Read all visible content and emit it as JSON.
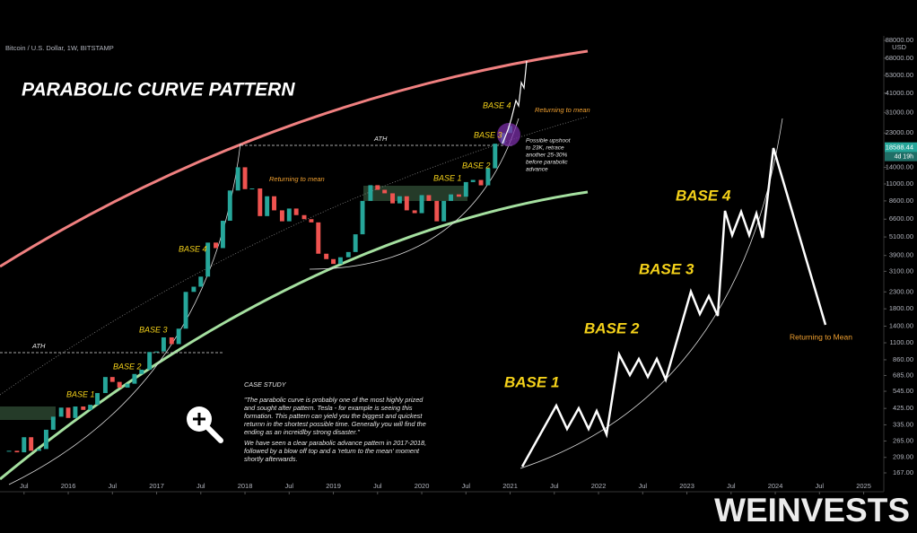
{
  "chart_data": {
    "type": "candlestick",
    "title": "PARABOLIC CURVE PATTERN",
    "subtitle": "Bitcoin / U.S. Dollar, 1W, BITSTAMP",
    "log_scale": true,
    "up_color": "#26a69a",
    "down_color": "#ef5350",
    "x": [
      2015.33,
      2015.42,
      2015.5,
      2015.58,
      2015.67,
      2015.75,
      2015.83,
      2015.92,
      2016.0,
      2016.08,
      2016.17,
      2016.25,
      2016.33,
      2016.42,
      2016.5,
      2016.58,
      2016.67,
      2016.75,
      2016.83,
      2016.92,
      2017.0,
      2017.08,
      2017.17,
      2017.25,
      2017.33,
      2017.42,
      2017.5,
      2017.58,
      2017.67,
      2017.75,
      2017.83,
      2017.92,
      2018.0,
      2018.08,
      2018.17,
      2018.25,
      2018.33,
      2018.42,
      2018.5,
      2018.58,
      2018.67,
      2018.75,
      2018.83,
      2018.92,
      2019.0,
      2019.08,
      2019.17,
      2019.25,
      2019.33,
      2019.42,
      2019.5,
      2019.58,
      2019.67,
      2019.75,
      2019.83,
      2019.92,
      2020.0,
      2020.08,
      2020.17,
      2020.25,
      2020.33,
      2020.42,
      2020.5,
      2020.58,
      2020.67,
      2020.75,
      2020.83,
      2020.92,
      2021.0
    ],
    "values": [
      230,
      225,
      280,
      230,
      236,
      312,
      377,
      430,
      370,
      437,
      416,
      448,
      531,
      670,
      624,
      575,
      608,
      700,
      745,
      963,
      970,
      1190,
      1080,
      1350,
      2300,
      2480,
      2870,
      4700,
      4340,
      6450,
      10000,
      14000,
      10200,
      10300,
      6900,
      9200,
      7500,
      6400,
      7700,
      7000,
      6600,
      6300,
      4000,
      3700,
      3450,
      3800,
      4100,
      5300,
      8600,
      10800,
      10100,
      9600,
      8300,
      9200,
      7500,
      7200,
      9350,
      8600,
      6400,
      8600,
      9450,
      9140,
      11300,
      11650,
      10780,
      13800,
      19700,
      23000,
      25500
    ],
    "xlim": [
      2015.228,
      2025.228
    ],
    "xticks": [
      {
        "value": 2015.5,
        "label": "Jul"
      },
      2016,
      {
        "value": 2016.5,
        "label": "Jul"
      },
      2017,
      {
        "value": 2017.5,
        "label": "Jul"
      },
      2018,
      {
        "value": 2018.5,
        "label": "Jul"
      },
      2019,
      {
        "value": 2019.5,
        "label": "Jul"
      },
      2020,
      {
        "value": 2020.5,
        "label": "Jul"
      },
      2021,
      {
        "value": 2021.5,
        "label": "Jul"
      },
      2022,
      {
        "value": 2022.5,
        "label": "Jul"
      },
      2023,
      {
        "value": 2023.5,
        "label": "Jul"
      },
      2024,
      {
        "value": 2024.5,
        "label": "Jul"
      },
      2025
    ],
    "ylim": [
      141,
      94000
    ],
    "yticks": [
      {
        "value": 167,
        "label": "167.00"
      },
      {
        "value": 209,
        "label": "209.00"
      },
      {
        "value": 265,
        "label": "265.00"
      },
      {
        "value": 335,
        "label": "335.00"
      },
      {
        "value": 425,
        "label": "425.00"
      },
      {
        "value": 545,
        "label": "545.00"
      },
      {
        "value": 685,
        "label": "685.00"
      },
      {
        "value": 860,
        "label": "860.00"
      },
      {
        "value": 1100,
        "label": "1100.00"
      },
      {
        "value": 1400,
        "label": "1400.00"
      },
      {
        "value": 1800,
        "label": "1800.00"
      },
      {
        "value": 2300,
        "label": "2300.00"
      },
      {
        "value": 3100,
        "label": "3100.00"
      },
      {
        "value": 3900,
        "label": "3900.00"
      },
      {
        "value": 5100,
        "label": "5100.00"
      },
      {
        "value": 6600,
        "label": "6600.00"
      },
      {
        "value": 8600,
        "label": "8600.00"
      },
      {
        "value": 11000,
        "label": "11000.00"
      },
      {
        "value": 14000,
        "label": "14000.00"
      },
      {
        "value": 23000,
        "label": "23000.00"
      },
      {
        "value": 31000,
        "label": "31000.00"
      },
      {
        "value": 41000,
        "label": "41000.00"
      },
      {
        "value": 53000,
        "label": "53000.00"
      },
      {
        "value": 68000,
        "label": "68000.00"
      },
      {
        "value": 88000,
        "label": "88000.00"
      }
    ],
    "currency": "USD",
    "last_price": 18588.44,
    "countdown": "4d 19h",
    "annotations": [
      "ATH",
      "ATH",
      "BASE 1",
      "BASE 2",
      "BASE 3",
      "BASE 4",
      "Returning to mean",
      "BASE 1",
      "BASE 2",
      "BASE 3",
      "BASE 4",
      "Returning to mean"
    ],
    "upshoot_note": [
      "Possible upshoot",
      "to 23K, retrace",
      "another 25-30%",
      "before parabolic",
      "advance"
    ],
    "illustration_labels": [
      "BASE 1",
      "BASE 2",
      "BASE 3",
      "BASE 4",
      "Returning to Mean"
    ],
    "case_study": {
      "title": "CASE STUDY",
      "lines": [
        "\"The parabolic curve is probably one of the most highly prized",
        "and sought after pattern. Tesla - for example is seeing this",
        "formation. This pattern can yield you the biggest and quickest",
        "returnn in the shortest possible time. Generally you will find the",
        "ending as an increidlby strong disaster.\"",
        "We have seen a clear parabolic advance pattern in 2017-2018,",
        "followed by a blow off top and a 'return to the mean' moment",
        "shortly afterwards."
      ]
    },
    "watermark": "WEINVESTS"
  }
}
